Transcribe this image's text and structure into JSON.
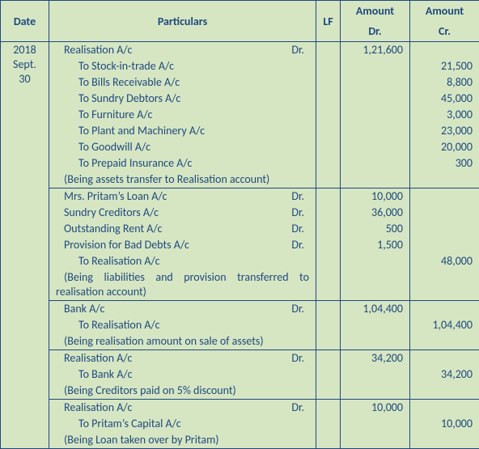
{
  "headers": {
    "date": "Date",
    "particulars": "Particulars",
    "lf": "LF",
    "amount_dr": "Amount Dr.",
    "amount_cr": "Amount Cr."
  },
  "date_col": {
    "year": "2018",
    "month_day": "Sept. 30"
  },
  "dr_label": "Dr.",
  "groups": [
    {
      "entries": [
        {
          "text": "Realisation A/c",
          "cls": "main",
          "dr_mark": true,
          "dr": "1,21,600",
          "cr": ""
        },
        {
          "text": "To Stock-in-trade A/c",
          "cls": "indent",
          "dr": "",
          "cr": "21,500"
        },
        {
          "text": "To Bills Receivable A/c",
          "cls": "indent",
          "dr": "",
          "cr": "8,800"
        },
        {
          "text": "To Sundry Debtors A/c",
          "cls": "indent",
          "dr": "",
          "cr": "45,000"
        },
        {
          "text": "To Furniture A/c",
          "cls": "indent",
          "dr": "",
          "cr": "3,000"
        },
        {
          "text": "To Plant and Machinery A/c",
          "cls": "indent",
          "dr": "",
          "cr": "23,000"
        },
        {
          "text": "To Goodwill A/c",
          "cls": "indent",
          "dr": "",
          "cr": "20,000"
        },
        {
          "text": "To Prepaid Insurance A/c",
          "cls": "indent",
          "dr": "",
          "cr": "300"
        },
        {
          "text": "(Being assets transfer to Realisation account)",
          "cls": "note",
          "dr": "",
          "cr": ""
        }
      ]
    },
    {
      "entries": [
        {
          "text": "Mrs. Pritam’s Loan A/c",
          "cls": "main",
          "dr_mark": true,
          "dr": "10,000",
          "cr": ""
        },
        {
          "text": "Sundry Creditors A/c",
          "cls": "main",
          "dr_mark": true,
          "dr": "36,000",
          "cr": ""
        },
        {
          "text": "Outstanding Rent A/c",
          "cls": "main",
          "dr_mark": true,
          "dr": "500",
          "cr": ""
        },
        {
          "text": "Provision for Bad Debts A/c",
          "cls": "main",
          "dr_mark": true,
          "dr": "1,500",
          "cr": ""
        },
        {
          "text": "To Realisation A/c",
          "cls": "indent",
          "dr": "",
          "cr": "48,000"
        },
        {
          "text": "(Being liabilities and provision transferred to realisation account)",
          "cls": "note just",
          "dr": "",
          "cr": ""
        }
      ]
    },
    {
      "entries": [
        {
          "text": "Bank A/c",
          "cls": "main",
          "dr_mark": true,
          "dr": "1,04,400",
          "cr": ""
        },
        {
          "text": "To Realisation A/c",
          "cls": "indent",
          "dr": "",
          "cr": "1,04,400"
        },
        {
          "text": "(Being realisation amount on sale of assets)",
          "cls": "note",
          "dr": "",
          "cr": ""
        }
      ]
    },
    {
      "entries": [
        {
          "text": "Realisation A/c",
          "cls": "main",
          "dr_mark": true,
          "dr": "34,200",
          "cr": ""
        },
        {
          "text": "To Bank A/c",
          "cls": "indent",
          "dr": "",
          "cr": "34,200"
        },
        {
          "text": "(Being Creditors paid on 5% discount)",
          "cls": "note",
          "dr": "",
          "cr": ""
        }
      ]
    },
    {
      "entries": [
        {
          "text": "Realisation A/c",
          "cls": "main",
          "dr_mark": true,
          "dr": "10,000",
          "cr": ""
        },
        {
          "text": "To Pritam’s Capital A/c",
          "cls": "indent",
          "dr": "",
          "cr": "10,000"
        },
        {
          "text": "(Being Loan taken over by Pritam)",
          "cls": "note",
          "dr": "",
          "cr": ""
        }
      ]
    }
  ]
}
